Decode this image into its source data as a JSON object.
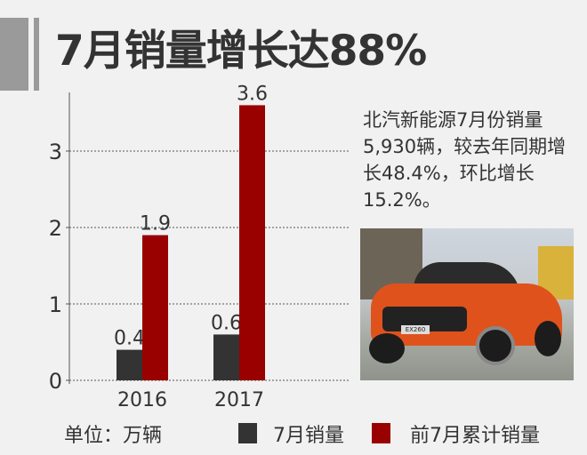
{
  "header": {
    "title": "7月销量增长达88%"
  },
  "description": "北汽新能源7月份销量5,930辆，较去年同期增长48.4%，环比增长15.2%。",
  "unit_label": "单位：万辆",
  "photo": {
    "badge": "EX260"
  },
  "chart_data": {
    "type": "bar",
    "categories": [
      "2016",
      "2017"
    ],
    "series": [
      {
        "name": "7月销量",
        "values": [
          0.4,
          0.6
        ],
        "color": "#333333"
      },
      {
        "name": "前7月累计销量",
        "values": [
          1.9,
          3.6
        ],
        "color": "#990000"
      }
    ],
    "data_labels": [
      [
        "0.4",
        "0.6"
      ],
      [
        "1.9",
        "3.6"
      ]
    ],
    "yticks": [
      "0",
      "1",
      "2",
      "3"
    ],
    "ylim": [
      0,
      3.6
    ],
    "grid": "horizontal dashed",
    "legend": "bottom"
  }
}
